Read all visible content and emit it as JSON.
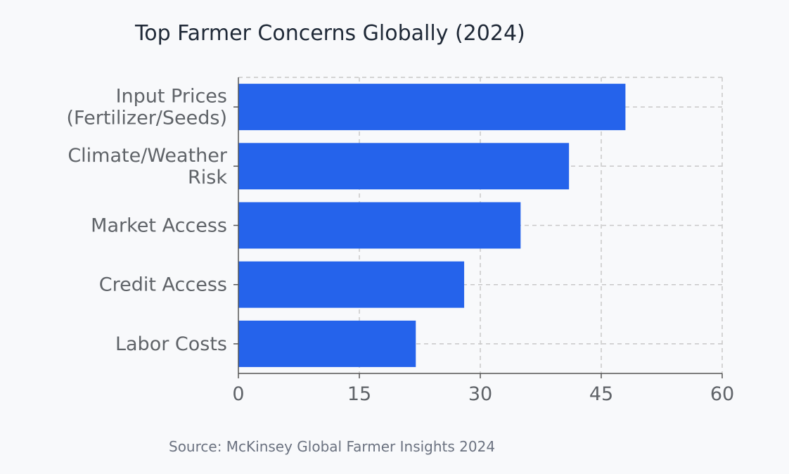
{
  "chart_data": {
    "type": "bar",
    "orientation": "horizontal",
    "title": "Top Farmer Concerns Globally (2024)",
    "categories": [
      [
        "Input Prices",
        "(Fertilizer/Seeds)"
      ],
      [
        "Climate/Weather",
        "Risk"
      ],
      [
        "Market Access"
      ],
      [
        "Credit Access"
      ],
      [
        "Labor Costs"
      ]
    ],
    "values": [
      48,
      41,
      35,
      28,
      22
    ],
    "xlim": [
      0,
      60
    ],
    "xticks": [
      0,
      15,
      30,
      45,
      60
    ],
    "xlabel": "",
    "ylabel": "",
    "grid": true,
    "bar_color": "#2563eb",
    "source": "Source: McKinsey Global Farmer Insights 2024"
  }
}
